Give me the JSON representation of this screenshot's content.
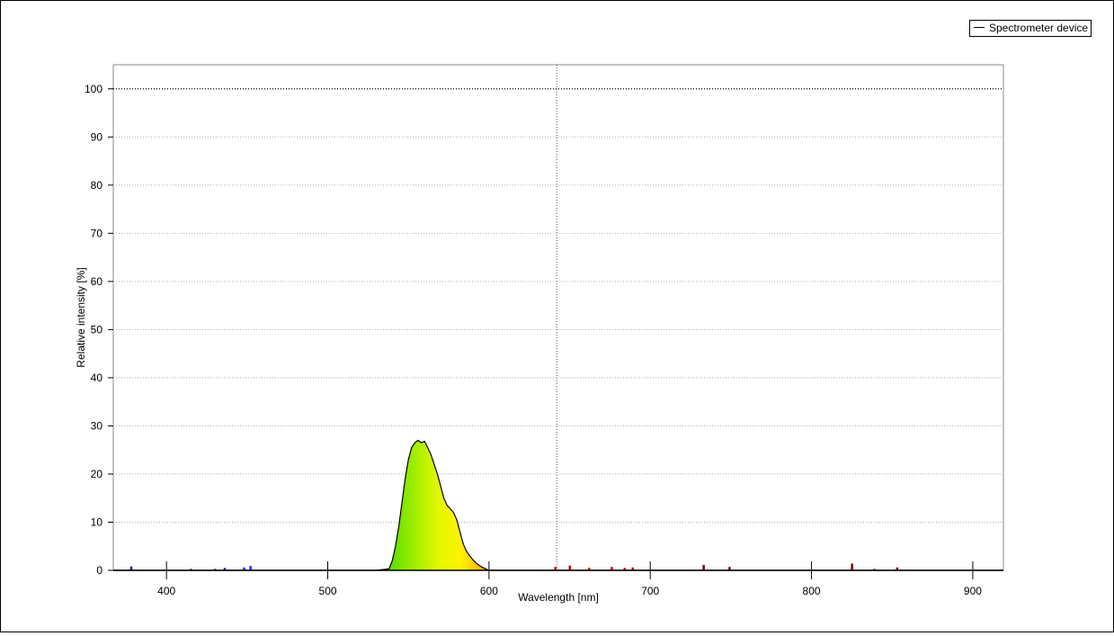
{
  "chart_data": {
    "type": "area",
    "title": "",
    "xlabel": "Wavelength [nm]",
    "ylabel": "Relative intensity [%]",
    "xlim": [
      367,
      919
    ],
    "ylim": [
      0,
      105
    ],
    "x_ticks": [
      400,
      500,
      600,
      700,
      800,
      900
    ],
    "y_ticks": [
      0,
      10,
      20,
      30,
      40,
      50,
      60,
      70,
      80,
      90,
      100
    ],
    "grid": true,
    "reference_line_y": 100,
    "cursor_x": 642,
    "legend": {
      "entries": [
        "Spectrometer device"
      ],
      "placement": "top-right"
    },
    "series": [
      {
        "name": "Spectrometer device",
        "x": [
          367,
          530,
          538,
          540,
          542,
          544,
          546,
          548,
          550,
          552,
          554,
          556,
          558,
          560,
          562,
          564,
          566,
          568,
          570,
          572,
          574,
          576,
          578,
          580,
          582,
          584,
          586,
          588,
          590,
          592,
          594,
          596,
          598,
          600,
          919
        ],
        "y": [
          0,
          0,
          0.3,
          2,
          5,
          9,
          14,
          19,
          23,
          25.5,
          26.5,
          27,
          26.5,
          26.8,
          25.5,
          24,
          22,
          20,
          17.5,
          15,
          13.5,
          12.8,
          12,
          10.5,
          8,
          5.5,
          4,
          3,
          2.2,
          1.5,
          1,
          0.6,
          0.3,
          0,
          0
        ]
      }
    ],
    "noise_spikes": {
      "x": [
        378,
        415,
        430,
        436,
        448,
        452,
        641,
        650,
        662,
        676,
        684,
        689,
        733,
        749,
        825,
        839,
        853
      ],
      "y": [
        0.8,
        0.3,
        0.3,
        0.5,
        0.6,
        0.9,
        0.7,
        1.0,
        0.5,
        0.7,
        0.5,
        0.6,
        1.1,
        0.7,
        1.4,
        0.3,
        0.6
      ]
    }
  }
}
